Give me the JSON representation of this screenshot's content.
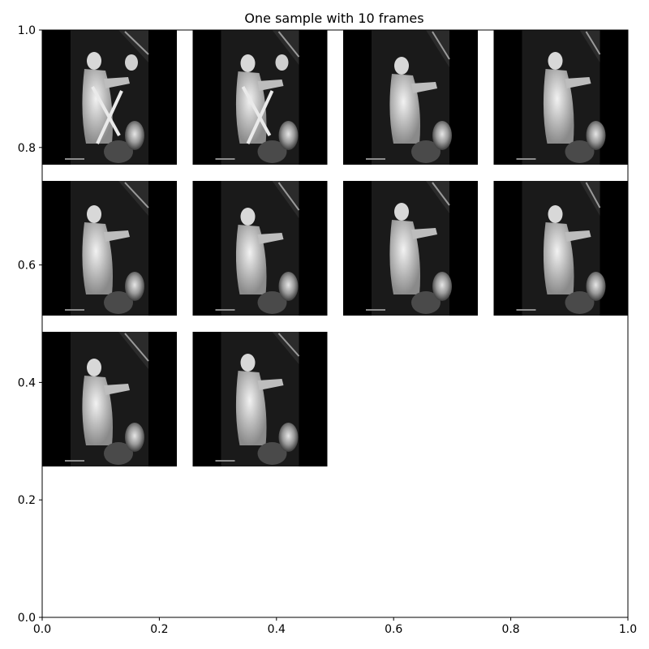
{
  "figure": {
    "title": "One sample with 10 frames",
    "background": "#ffffff",
    "frame_background": "#000000"
  },
  "axes": {
    "xlim": [
      0.0,
      1.0
    ],
    "ylim": [
      0.0,
      1.0
    ],
    "grid": false,
    "x_ticks": [
      {
        "value": 0.0,
        "label": "0.0"
      },
      {
        "value": 0.2,
        "label": "0.2"
      },
      {
        "value": 0.4,
        "label": "0.4"
      },
      {
        "value": 0.6,
        "label": "0.6"
      },
      {
        "value": 0.8,
        "label": "0.8"
      },
      {
        "value": 1.0,
        "label": "1.0"
      }
    ],
    "y_ticks": [
      {
        "value": 0.0,
        "label": "0.0"
      },
      {
        "value": 0.2,
        "label": "0.2"
      },
      {
        "value": 0.4,
        "label": "0.4"
      },
      {
        "value": 0.6,
        "label": "0.6"
      },
      {
        "value": 0.8,
        "label": "0.8"
      },
      {
        "value": 1.0,
        "label": "1.0"
      }
    ]
  },
  "frames": {
    "count": 10,
    "columns": 4,
    "content": "grayscale surveillance video frame"
  }
}
